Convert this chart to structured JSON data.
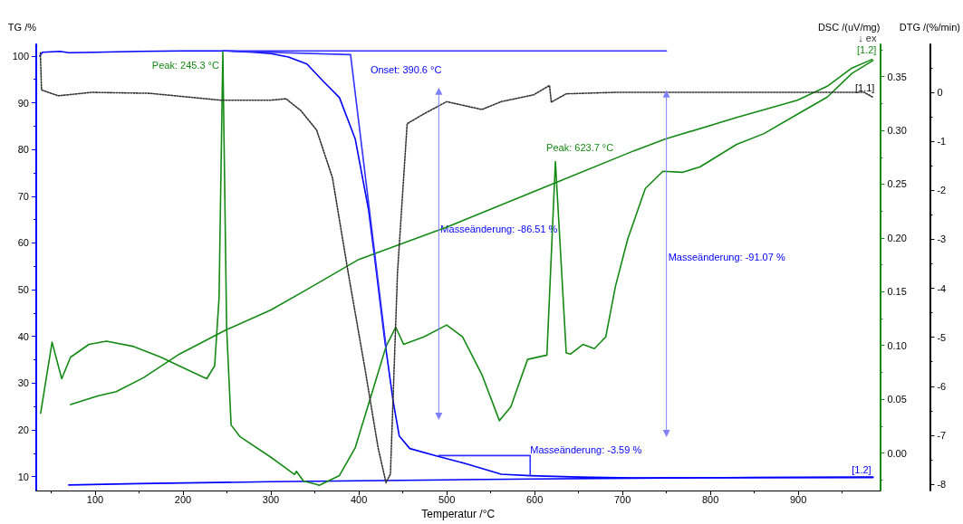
{
  "chart_data": {
    "type": "line",
    "xlabel": "Temperatur /°C",
    "ylabel": "TG /%",
    "y2label": "DSC /(uV/mg)",
    "y3label": "DTG /(%/min)",
    "xlim": [
      33,
      993
    ],
    "xticks": [
      100,
      200,
      300,
      400,
      500,
      600,
      700,
      800,
      900
    ],
    "ylim": [
      7,
      102.5
    ],
    "yticks": [
      10,
      20,
      30,
      40,
      50,
      60,
      70,
      80,
      90,
      100
    ],
    "y2lim": [
      -0.035,
      0.38
    ],
    "y2ticks": [
      {
        "value": 0,
        "label": "0.00"
      },
      {
        "value": 0.05,
        "label": "0.05"
      },
      {
        "value": 0.1,
        "label": "0.10"
      },
      {
        "value": 0.15,
        "label": "0.15"
      },
      {
        "value": 0.2,
        "label": "0.20"
      },
      {
        "value": 0.25,
        "label": "0.25"
      },
      {
        "value": 0.3,
        "label": "0.30"
      },
      {
        "value": 0.35,
        "label": "0.35"
      }
    ],
    "y3lim": [
      -8.13,
      0.98
    ],
    "y3ticks": [
      0,
      -1,
      -2,
      -3,
      -4,
      -5,
      -6,
      -7,
      -8
    ],
    "grid": false,
    "marker": "none",
    "series": [
      {
        "color": "#0000ff",
        "x": [
          37,
          40,
          60,
          70,
          100,
          150,
          200,
          250,
          280,
          300,
          320,
          341,
          360,
          378,
          396,
          411,
          418,
          429,
          439,
          446,
          458,
          491,
          525,
          562,
          595,
          650,
          713,
          750,
          850,
          985
        ],
        "values": [
          100,
          100.8,
          101,
          100.7,
          100.8,
          101,
          101.1,
          101.1,
          100.8,
          100.5,
          99.8,
          98.3,
          94.5,
          91.1,
          82.2,
          67.2,
          56.9,
          39.9,
          26.2,
          18.7,
          16,
          14.3,
          12.6,
          10.5,
          10.2,
          9.9,
          9.7,
          9.7,
          9.8,
          9.8
        ]
      },
      {
        "color": "#0000ff",
        "x": [
          70,
          150,
          300,
          400,
          500,
          600,
          750,
          985
        ],
        "values": [
          8.2,
          8.5,
          8.9,
          9.1,
          9.3,
          9.5,
          9.7,
          9.9
        ]
      },
      {
        "color": "#138a13",
        "axis": "y2",
        "x": [
          38,
          51,
          62,
          72,
          93,
          113,
          144,
          175,
          206,
          227,
          236,
          241,
          245.3,
          249.6,
          254.7,
          265,
          300,
          327,
          329,
          337,
          351,
          355,
          378,
          396,
          418,
          431,
          442,
          451,
          474,
          500,
          518,
          540,
          560,
          573,
          592,
          614,
          623.7,
          636,
          641,
          655,
          668,
          681,
          692,
          706,
          726,
          746,
          768,
          788,
          830,
          861,
          899,
          933,
          961,
          985
        ],
        "values": [
          0.037,
          0.103,
          0.069,
          0.089,
          0.101,
          0.104,
          0.099,
          0.089,
          0.077,
          0.069,
          0.081,
          0.144,
          0.373,
          0.117,
          0.026,
          0.015,
          -0.004,
          -0.02,
          -0.017,
          -0.026,
          -0.029,
          -0.03,
          -0.021,
          0.005,
          0.064,
          0.099,
          0.117,
          0.101,
          0.108,
          0.119,
          0.108,
          0.073,
          0.03,
          0.043,
          0.087,
          0.091,
          0.271,
          0.093,
          0.092,
          0.101,
          0.097,
          0.108,
          0.155,
          0.199,
          0.246,
          0.262,
          0.261,
          0.266,
          0.287,
          0.297,
          0.315,
          0.331,
          0.353,
          0.365
        ]
      },
      {
        "color": "#138a13",
        "axis": "y2",
        "x": [
          72,
          103,
          124,
          155,
          196,
          248,
          300,
          341,
          400,
          500,
          623,
          713,
          749,
          830,
          899,
          933,
          961,
          984
        ],
        "values": [
          0.045,
          0.053,
          0.057,
          0.07,
          0.092,
          0.114,
          0.133,
          0.152,
          0.18,
          0.21,
          0.251,
          0.281,
          0.292,
          0.312,
          0.328,
          0.341,
          0.358,
          0.366
        ]
      },
      {
        "color": "#333333",
        "axis": "y3",
        "line_style": "dotted",
        "x": [
          37.7,
          39,
          58,
          96,
          162,
          243,
          300,
          317,
          334,
          352,
          370,
          388,
          407,
          422,
          431,
          436,
          444,
          455,
          474,
          500,
          540,
          562,
          599,
          617,
          619,
          636,
          692,
          800,
          900,
          975,
          985
        ],
        "values": [
          0.81,
          0.05,
          -0.07,
          0,
          -0.02,
          -0.16,
          -0.16,
          -0.13,
          -0.37,
          -0.77,
          -1.74,
          -3.69,
          -5.64,
          -7.26,
          -7.97,
          -7.79,
          -3.69,
          -0.64,
          -0.44,
          -0.19,
          -0.35,
          -0.19,
          -0.05,
          0.14,
          -0.2,
          -0.03,
          0,
          0,
          0,
          0,
          -0.1
        ]
      },
      {
        "color": "#3030ff",
        "x": [
          245.3,
          750
        ],
        "values": [
          101.1,
          101.1
        ]
      },
      {
        "color": "#3030ff",
        "x": [
          245.3,
          390.6,
          431
        ],
        "values": [
          101.1,
          100.3,
          37.8
        ]
      },
      {
        "color": "#3030ff",
        "x": [
          491,
          595,
          595
        ],
        "values": [
          14.5,
          14.5,
          10.2
        ]
      },
      {
        "color": "#8080ff",
        "marker": "triangle",
        "x": [
          491,
          491
        ],
        "values": [
          92.5,
          22.9
        ]
      },
      {
        "color": "#8080ff",
        "marker": "triangle",
        "x": [
          750,
          750
        ],
        "values": [
          91.9,
          19.2
        ]
      }
    ],
    "annotations": [
      {
        "text": "Peak: 245.3 °C",
        "x": 245.3,
        "y": 101.1
      },
      {
        "text": "Onset: 390.6 °C",
        "x": 390.6,
        "y": 100.3
      },
      {
        "text": "Peak: 623.7 °C",
        "x": 623.7,
        "y": 77.8
      },
      {
        "text": "Masseänderung: -86.51 %",
        "x": 491,
        "y": 63
      },
      {
        "text": "Masseänderung: -91.07 %",
        "x": 750,
        "y": 57
      },
      {
        "text": "Masseänderung: -3.59 %",
        "x": 595,
        "y": 14.5
      },
      "[1.1]",
      {
        "text": "[1.2]",
        "x": 985,
        "y": 10
      },
      "[1.2]",
      "↓ ex"
    ]
  }
}
